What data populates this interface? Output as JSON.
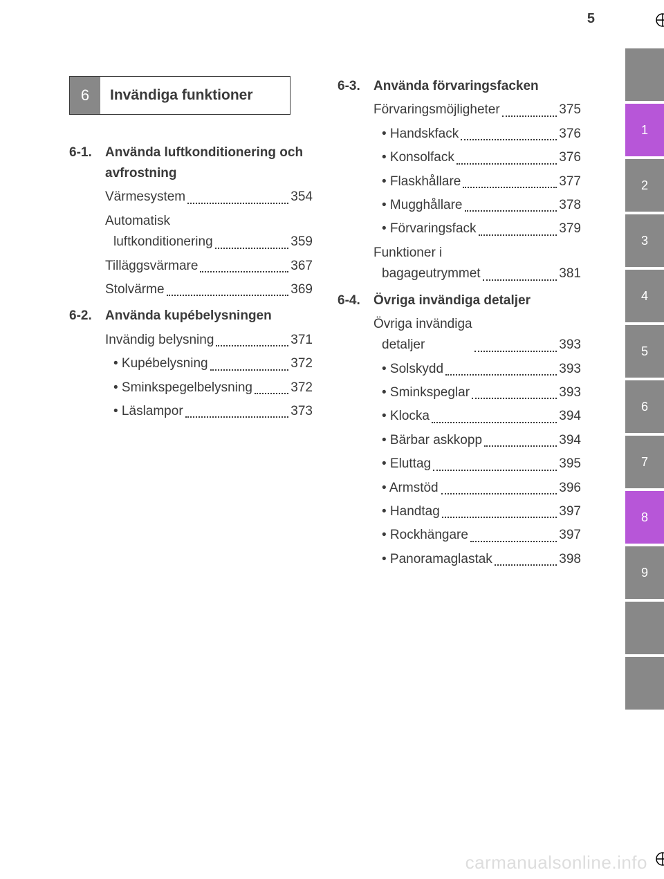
{
  "page_number": "5",
  "chapter": {
    "number": "6",
    "title": "Invändiga funktioner"
  },
  "tabs": [
    {
      "label": "",
      "bg": "#888888"
    },
    {
      "label": "1",
      "bg": "#b756d8"
    },
    {
      "label": "2",
      "bg": "#888888"
    },
    {
      "label": "3",
      "bg": "#888888"
    },
    {
      "label": "4",
      "bg": "#888888"
    },
    {
      "label": "5",
      "bg": "#888888"
    },
    {
      "label": "6",
      "bg": "#888888"
    },
    {
      "label": "7",
      "bg": "#888888"
    },
    {
      "label": "8",
      "bg": "#b756d8"
    },
    {
      "label": "9",
      "bg": "#888888"
    },
    {
      "label": "",
      "bg": "#888888"
    },
    {
      "label": "",
      "bg": "#888888"
    }
  ],
  "columns": [
    [
      {
        "num": "6-1.",
        "title": "Använda luftkonditionering och avfrostning",
        "entries": [
          {
            "label": "Värmesystem",
            "page": "354",
            "bullet": false
          },
          {
            "label": "Automatisk",
            "wrap": "luftkonditionering",
            "page": "359",
            "bullet": false
          },
          {
            "label": "Tilläggsvärmare",
            "page": "367",
            "bullet": false
          },
          {
            "label": "Stolvärme",
            "page": "369",
            "bullet": false
          }
        ]
      },
      {
        "num": "6-2.",
        "title": "Använda kupébelysningen",
        "entries": [
          {
            "label": "Invändig belysning",
            "page": "371",
            "bullet": false
          },
          {
            "label": "Kupébelysning",
            "page": "372",
            "bullet": true
          },
          {
            "label": "Sminkspegelbelysning",
            "page": "372",
            "bullet": true
          },
          {
            "label": "Läslampor",
            "page": "373",
            "bullet": true
          }
        ]
      }
    ],
    [
      {
        "num": "6-3.",
        "title": "Använda förvaringsfacken",
        "entries": [
          {
            "label": "Förvaringsmöjligheter",
            "page": "375",
            "bullet": false
          },
          {
            "label": "Handskfack",
            "page": "376",
            "bullet": true
          },
          {
            "label": "Konsolfack",
            "page": "376",
            "bullet": true
          },
          {
            "label": "Flaskhållare",
            "page": "377",
            "bullet": true
          },
          {
            "label": "Mugghållare",
            "page": "378",
            "bullet": true
          },
          {
            "label": "Förvaringsfack",
            "page": "379",
            "bullet": true
          },
          {
            "label": "Funktioner i",
            "wrap": "bagageutrymmet",
            "page": "381",
            "bullet": false
          }
        ]
      },
      {
        "num": "6-4.",
        "title": "Övriga invändiga detaljer",
        "entries": [
          {
            "label": "Övriga invändiga",
            "wrap": "detaljer",
            "page": "393",
            "bullet": false
          },
          {
            "label": "Solskydd",
            "page": "393",
            "bullet": true
          },
          {
            "label": "Sminkspeglar",
            "page": "393",
            "bullet": true
          },
          {
            "label": "Klocka",
            "page": "394",
            "bullet": true
          },
          {
            "label": "Bärbar askkopp",
            "page": "394",
            "bullet": true
          },
          {
            "label": "Eluttag",
            "page": "395",
            "bullet": true
          },
          {
            "label": "Armstöd",
            "page": "396",
            "bullet": true
          },
          {
            "label": "Handtag",
            "page": "397",
            "bullet": true
          },
          {
            "label": "Rockhängare",
            "page": "397",
            "bullet": true
          },
          {
            "label": "Panoramaglastak",
            "page": "398",
            "bullet": true
          }
        ]
      }
    ]
  ],
  "watermark": "carmanualsonline.info"
}
